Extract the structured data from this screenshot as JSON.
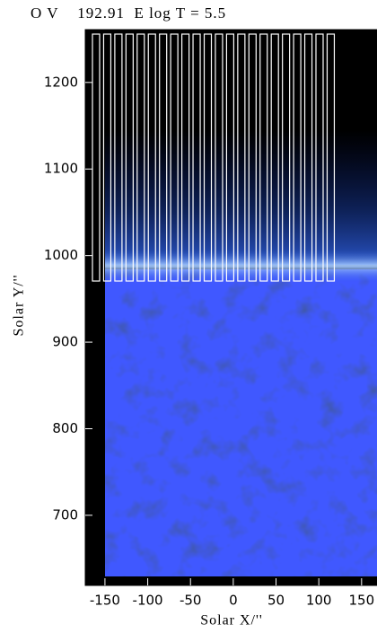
{
  "chart_data": {
    "type": "image",
    "title": "O V    192.91  E log T = 5.5",
    "xlabel": "Solar X/''",
    "ylabel": "Solar Y/''",
    "xlim": [
      -173,
      180
    ],
    "ylim": [
      619,
      1261
    ],
    "xticks": [
      -150,
      -100,
      -50,
      0,
      50,
      100,
      150
    ],
    "yticks": [
      700,
      800,
      900,
      1000,
      1100,
      1200
    ]
  }
}
